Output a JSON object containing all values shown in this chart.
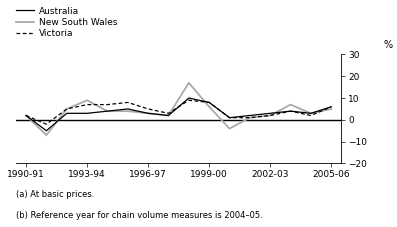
{
  "x_labels": [
    "1990-91",
    "1993-94",
    "1996-97",
    "1999-00",
    "2002-03",
    "2005-06"
  ],
  "x_positions": [
    0,
    3,
    6,
    9,
    12,
    15
  ],
  "years": [
    0,
    1,
    2,
    3,
    4,
    5,
    6,
    7,
    8,
    9,
    10,
    11,
    12,
    13,
    14,
    15
  ],
  "australia": [
    2,
    -5,
    3,
    3,
    4,
    5,
    3,
    2,
    10,
    8,
    1,
    2,
    3,
    4,
    3,
    6
  ],
  "nsw": [
    2,
    -7,
    5,
    9,
    4,
    4,
    3,
    2,
    17,
    6,
    -4,
    1,
    2,
    7,
    3,
    5
  ],
  "victoria": [
    2,
    -2,
    5,
    7,
    7,
    8,
    5,
    3,
    9,
    8,
    1,
    1,
    2,
    4,
    2,
    6
  ],
  "australia_color": "#000000",
  "nsw_color": "#aaaaaa",
  "victoria_color": "#000000",
  "ylim": [
    -20,
    30
  ],
  "yticks": [
    -20,
    -10,
    0,
    10,
    20,
    30
  ],
  "ylabel": "%",
  "footnote1": "(a) At basic prices.",
  "footnote2": "(b) Reference year for chain volume measures is 2004–05.",
  "legend_australia": "Australia",
  "legend_nsw": "New South Wales",
  "legend_victoria": "Victoria"
}
